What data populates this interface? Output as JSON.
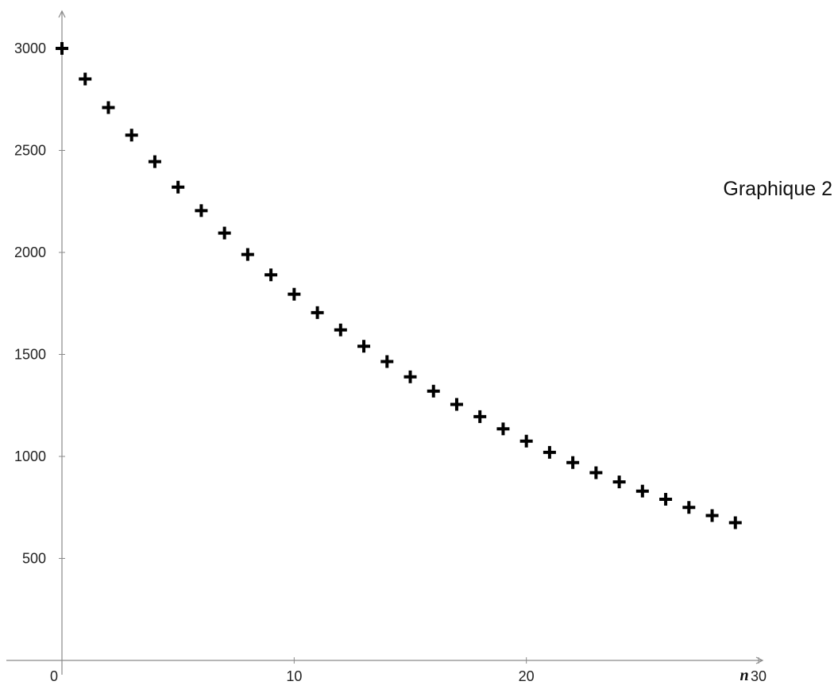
{
  "chart_data": {
    "type": "scatter",
    "title": "Graphique 2",
    "xlabel": "n",
    "ylabel": "",
    "xlim": [
      0,
      30
    ],
    "ylim": [
      0,
      3000
    ],
    "grid": false,
    "legend": "none",
    "marker": "plus",
    "marker_color": "#000000",
    "axis_color": "#8a8a8a",
    "x_ticks": [
      0,
      10,
      20,
      30
    ],
    "x_tick_labels": [
      "0",
      "10",
      "20",
      "30"
    ],
    "y_ticks": [
      500,
      1000,
      1500,
      2000,
      2500,
      3000
    ],
    "y_tick_labels": [
      "500",
      "1000",
      "1500",
      "2000",
      "2500",
      "3000"
    ],
    "series": [
      {
        "x": [
          0,
          1,
          2,
          3,
          4,
          5,
          6,
          7,
          8,
          9,
          10,
          11,
          12,
          13,
          14,
          15,
          16,
          17,
          18,
          19,
          20,
          21,
          22,
          23,
          24,
          25,
          26,
          27,
          28,
          29
        ],
        "values": [
          3000,
          2850,
          2710,
          2575,
          2445,
          2320,
          2205,
          2095,
          1990,
          1890,
          1795,
          1705,
          1620,
          1540,
          1465,
          1390,
          1320,
          1255,
          1195,
          1135,
          1075,
          1020,
          970,
          920,
          875,
          830,
          790,
          750,
          710,
          675
        ]
      }
    ]
  }
}
